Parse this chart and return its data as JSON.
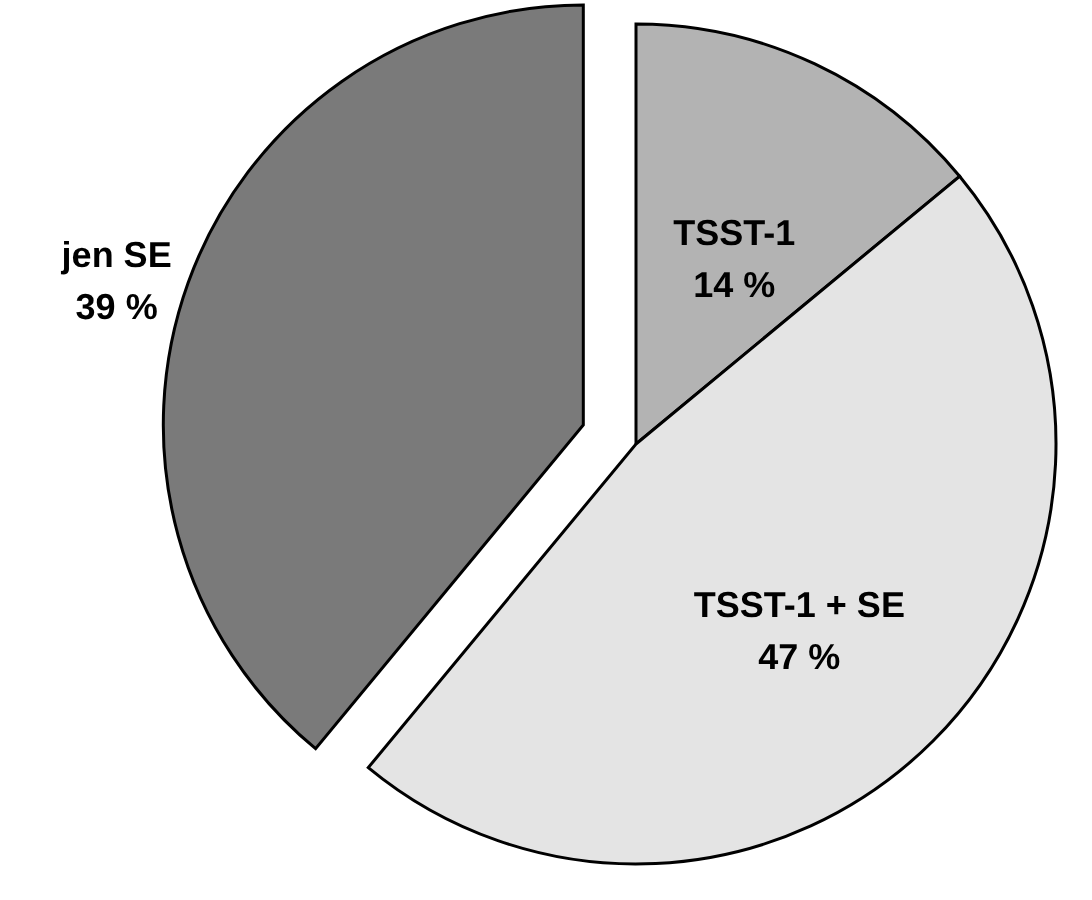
{
  "chart_data": {
    "type": "pie",
    "categories": [
      "TSST-1",
      "TSST-1 + SE",
      "jen SE"
    ],
    "values": [
      14,
      47,
      39
    ],
    "value_labels": [
      "14 %",
      "47 %",
      "39 %"
    ],
    "colors": [
      "#b3b3b3",
      "#e4e4e4",
      "#7a7a7a"
    ]
  }
}
